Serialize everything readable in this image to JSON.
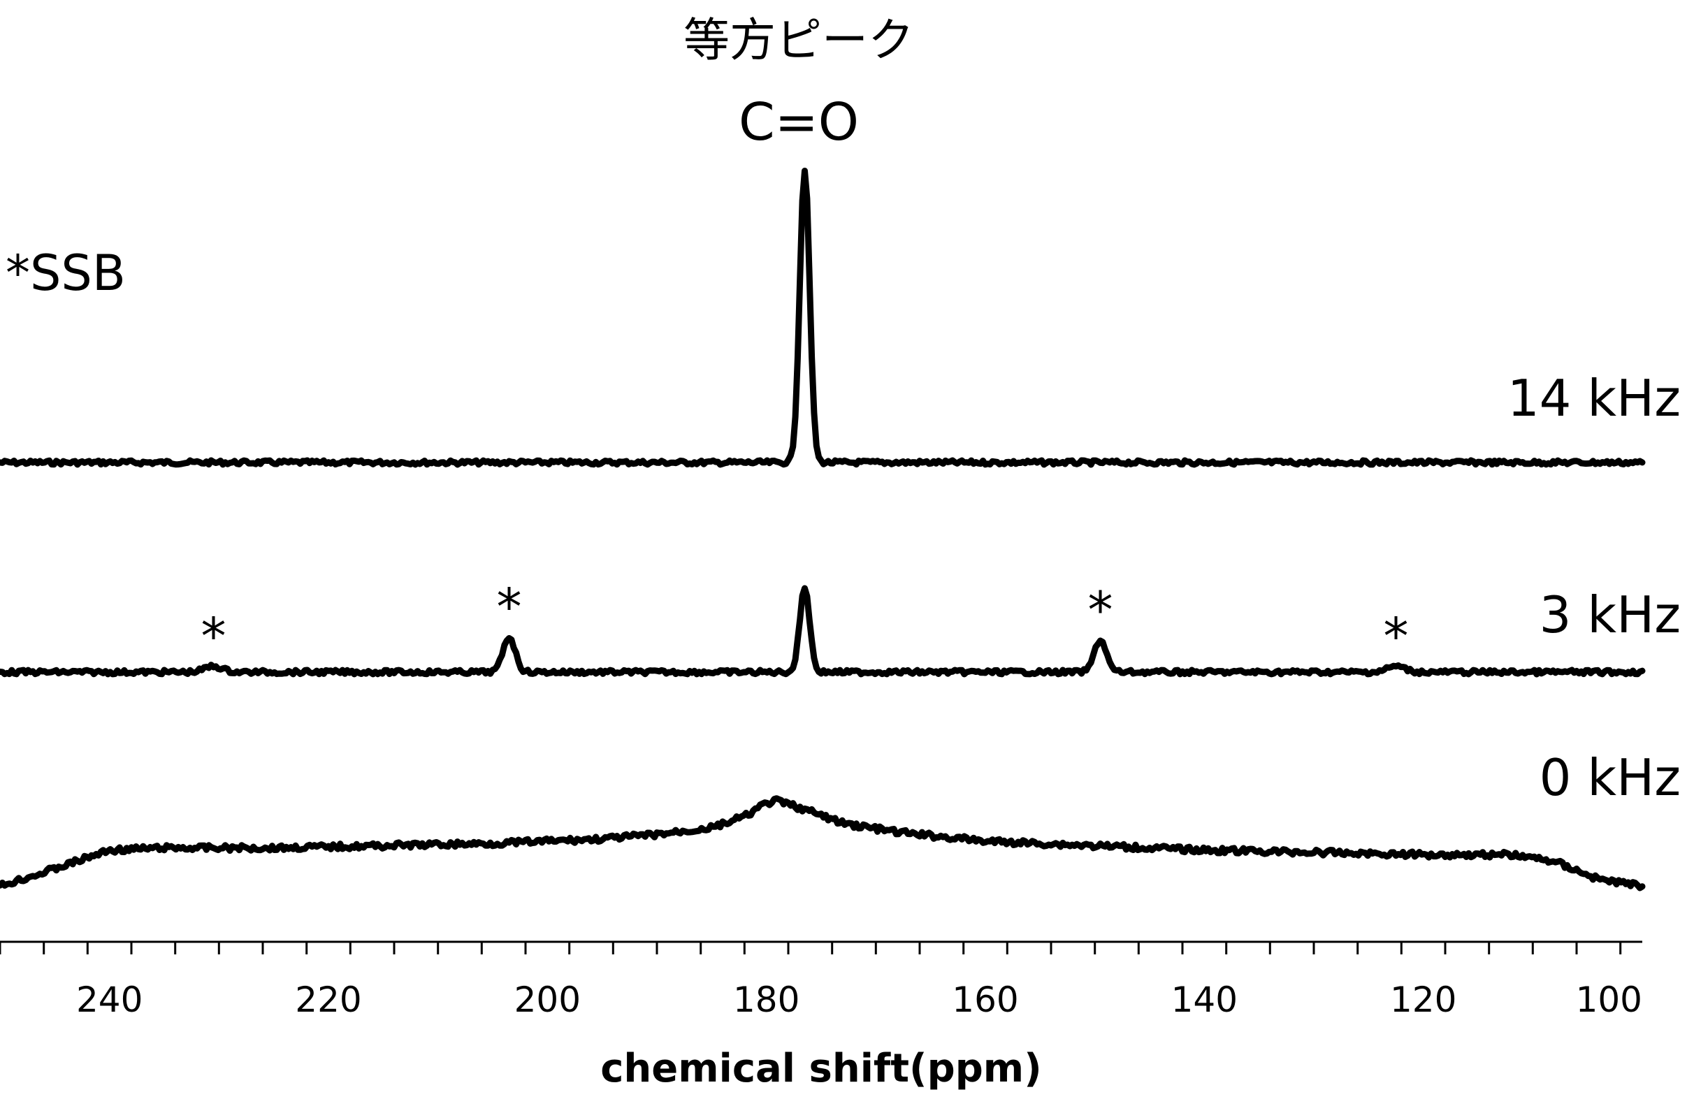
{
  "chart_data": {
    "type": "line",
    "title": "等方ピーク",
    "xlabel": "chemical shift(ppm)",
    "xlim": [
      250,
      100
    ],
    "x_reversed": true,
    "grid": false,
    "xticks": [
      240,
      220,
      200,
      180,
      160,
      140,
      120,
      100
    ],
    "minor_tick_step": 4,
    "annotations": {
      "peak_title": "等方ピーク",
      "peak_label": "C=O",
      "ssb_note": "*SSB",
      "ssb_marker": "*"
    },
    "series": [
      {
        "name": "14 kHz",
        "baseline_y": 0,
        "peaks": [
          {
            "x": 176.5,
            "height": 1.0,
            "width": 0.45
          }
        ]
      },
      {
        "name": "3 kHz",
        "baseline_y": 0,
        "peaks": [
          {
            "x": 230.5,
            "height": 0.02,
            "width": 0.8
          },
          {
            "x": 203.5,
            "height": 0.12,
            "width": 0.55
          },
          {
            "x": 176.5,
            "height": 0.29,
            "width": 0.45
          },
          {
            "x": 149.5,
            "height": 0.11,
            "width": 0.55
          },
          {
            "x": 122.5,
            "height": 0.02,
            "width": 0.8
          }
        ],
        "ssb_positions": [
          230.5,
          203.5,
          149.5,
          122.5
        ]
      },
      {
        "name": "0 kHz",
        "type": "broad_powder_pattern",
        "x": [
          250,
          246,
          240,
          235,
          225,
          215,
          205,
          195,
          190,
          185,
          182,
          180,
          179,
          177,
          173,
          168,
          160,
          150,
          140,
          130,
          120,
          112,
          108,
          104,
          100
        ],
        "y": [
          0.0,
          0.06,
          0.16,
          0.17,
          0.17,
          0.18,
          0.19,
          0.21,
          0.23,
          0.26,
          0.31,
          0.37,
          0.38,
          0.35,
          0.28,
          0.24,
          0.2,
          0.18,
          0.16,
          0.15,
          0.14,
          0.14,
          0.11,
          0.03,
          0.0
        ]
      }
    ]
  }
}
